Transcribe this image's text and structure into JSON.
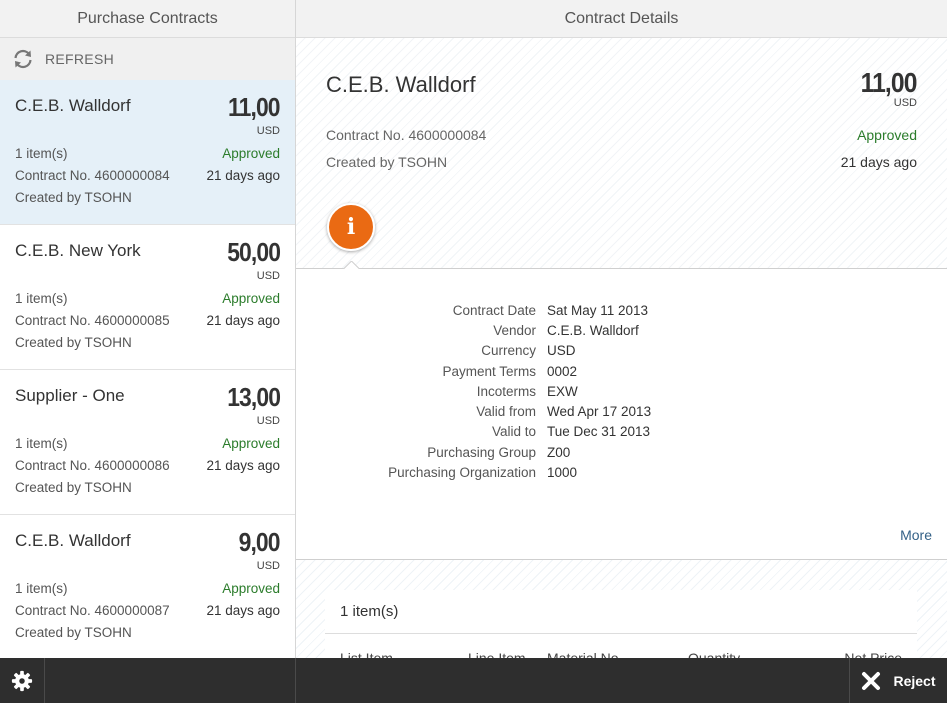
{
  "master": {
    "title": "Purchase Contracts",
    "refresh_label": "REFRESH",
    "items": [
      {
        "title": "C.E.B. Walldorf",
        "amount": "11,00",
        "unit": "USD",
        "count": "1 item(s)",
        "status": "Approved",
        "contract": "Contract No. 4600000084",
        "age": "21 days ago",
        "created": "Created by TSOHN"
      },
      {
        "title": "C.E.B. New York",
        "amount": "50,00",
        "unit": "USD",
        "count": "1 item(s)",
        "status": "Approved",
        "contract": "Contract No. 4600000085",
        "age": "21 days ago",
        "created": "Created by TSOHN"
      },
      {
        "title": "Supplier - One",
        "amount": "13,00",
        "unit": "USD",
        "count": "1 item(s)",
        "status": "Approved",
        "contract": "Contract No. 4600000086",
        "age": "21 days ago",
        "created": "Created by TSOHN"
      },
      {
        "title": "C.E.B. Walldorf",
        "amount": "9,00",
        "unit": "USD",
        "count": "1 item(s)",
        "status": "Approved",
        "contract": "Contract No. 4600000087",
        "age": "21 days ago",
        "created": "Created by TSOHN"
      }
    ]
  },
  "detail": {
    "title": "Contract Details",
    "header": {
      "title": "C.E.B. Walldorf",
      "amount": "11,00",
      "unit": "USD",
      "contract": "Contract No. 4600000084",
      "status": "Approved",
      "created": "Created by TSOHN",
      "age": "21 days ago"
    },
    "info_tab_icon": "i",
    "form": [
      {
        "label": "Contract Date",
        "value": "Sat May 11 2013"
      },
      {
        "label": "Vendor",
        "value": "C.E.B. Walldorf"
      },
      {
        "label": "Currency",
        "value": "USD"
      },
      {
        "label": "Payment Terms",
        "value": "0002"
      },
      {
        "label": "Incoterms",
        "value": "EXW"
      },
      {
        "label": "Valid from",
        "value": "Wed Apr 17 2013"
      },
      {
        "label": "Valid to",
        "value": "Tue Dec 31 2013"
      },
      {
        "label": "Purchasing Group",
        "value": "Z00"
      },
      {
        "label": "Purchasing Organization",
        "value": "1000"
      }
    ],
    "more_label": "More",
    "items_table": {
      "title": "1 item(s)",
      "columns": [
        "List Item",
        "Line Item",
        "Material No.",
        "Quantity",
        "Net Price"
      ]
    }
  },
  "footer": {
    "reject_label": "Reject"
  },
  "colors": {
    "accent_orange": "#ea6a13",
    "status_green": "#2b7c2b",
    "link_blue": "#346187",
    "selected_bg": "#e5f0f8",
    "footer_bg": "#2e2e2e"
  }
}
